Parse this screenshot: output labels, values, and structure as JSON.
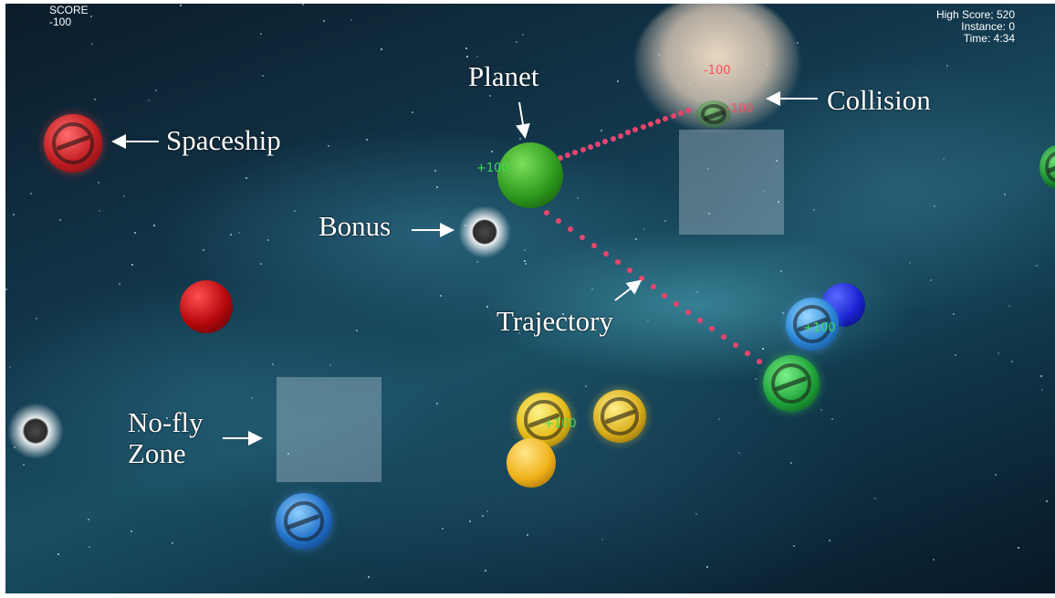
{
  "hud": {
    "score_label": "SCORE",
    "score_value": "-100",
    "high_score": "High Score; 520",
    "instance": "Instance: 0",
    "time": "Time: 4:34"
  },
  "annotations": {
    "spaceship": "Spaceship",
    "planet": "Planet",
    "bonus": "Bonus",
    "trajectory": "Trajectory",
    "collision": "Collision",
    "no_fly_line1": "No-fly",
    "no_fly_line2": "Zone"
  },
  "score_popups": {
    "planet_bonus": "+100",
    "collision_a": "-100",
    "collision_b": "-100",
    "blue_ship": "+100",
    "yellow_ship": "+100"
  },
  "colors": {
    "trajectory": "#e8456e",
    "positive": "#3ddc55",
    "negative": "#ff4a5a"
  }
}
